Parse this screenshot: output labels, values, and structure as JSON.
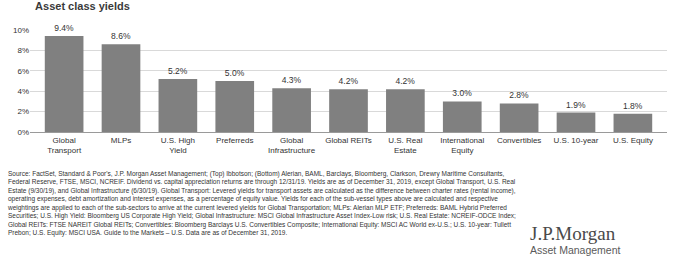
{
  "chart_data": {
    "type": "bar",
    "title": "Asset class yields",
    "categories": [
      "Global Transport",
      "MLPs",
      "U.S. High Yield",
      "Preferreds",
      "Global Infrastructure",
      "Global REITs",
      "U.S. Real Estate",
      "International Equity",
      "Convertibles",
      "U.S. 10-year",
      "U.S. Equity"
    ],
    "values": [
      9.4,
      8.6,
      5.2,
      5.0,
      4.3,
      4.2,
      4.2,
      3.0,
      2.8,
      1.9,
      1.8
    ],
    "value_labels": [
      "9.4%",
      "8.6%",
      "5.2%",
      "5.0%",
      "4.3%",
      "4.2%",
      "4.2%",
      "3.0%",
      "2.8%",
      "1.9%",
      "1.8%"
    ],
    "color": "#808080",
    "ylim": [
      0,
      10
    ],
    "yticks": [
      {
        "value": 0,
        "label": "0%"
      },
      {
        "value": 2,
        "label": "2%"
      },
      {
        "value": 4,
        "label": "4%"
      },
      {
        "value": 6,
        "label": "6%"
      },
      {
        "value": 8,
        "label": "8%"
      },
      {
        "value": 10,
        "label": "10%"
      }
    ],
    "grid": true,
    "data_labels": true
  },
  "source": "Source: FactSet, Standard & Poor's, J.P. Morgan Asset Management; (Top) Ibbotson; (Bottom) Alerian, BAML, Barclays, Bloomberg, Clarkson, Drewry Maritime Consultants, Federal Reserve, FTSE, MSCI, NCREIF. Dividend vs. capital appreciation returns are through 12/31/19. Yields are as of December 31, 2019, except Global Transport, U.S. Real Estate (9/30/19), and Global Infrastructure (6/30/19). Global Transport: Levered yields for transport assets are calculated as the difference between charter rates (rental income), operating expenses, debt amortization and interest expenses, as a percentage of equity value. Yields for each of the sub-vessel types above are calculated and respective weightings are applied to each of the sub-sectors to arrive at the current levered yields for Global Transportation; MLPs: Alerian MLP ETF; Preferreds: BAML Hybrid Preferred Securities; U.S. High Yield: Bloomberg US Corporate High Yield; Global Infrastructure: MSCI Global Infrastructure Asset Index-Low risk; U.S. Real Estate: NCREIF-ODCE Index; Global REITs: FTSE NAREIT Global REITs; Convertibles: Bloomberg Barclays U.S. Convertibles Composite; International Equity: MSCI AC World ex-U.S.; U.S. 10-year: Tullett Prebon; U.S. Equity: MSCI USA. Guide to the Markets – U.S. Data are as of December 31, 2019.",
  "logo": [
    "J.P.Morgan",
    "Asset Management"
  ]
}
